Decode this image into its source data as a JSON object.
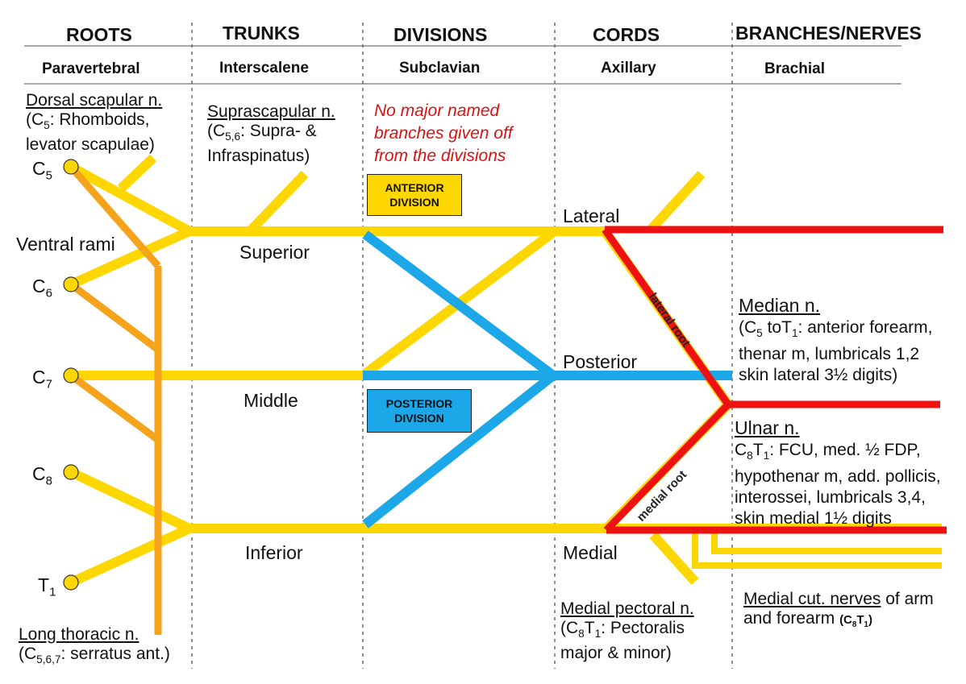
{
  "columns": [
    {
      "title": "ROOTS",
      "region": "Paravertebral"
    },
    {
      "title": "TRUNKS",
      "region": "Interscalene"
    },
    {
      "title": "DIVISIONS",
      "region": "Subclavian"
    },
    {
      "title": "CORDS",
      "region": "Axillary"
    },
    {
      "title": "BRANCHES/NERVES",
      "region": "Brachial"
    }
  ],
  "roots": {
    "c5": "C",
    "c5_sub": "5",
    "c6": "C",
    "c6_sub": "6",
    "c7": "C",
    "c7_sub": "7",
    "c8": "C",
    "c8_sub": "8",
    "t1": "T",
    "t1_sub": "1",
    "ventral_rami": "Ventral rami"
  },
  "trunks": {
    "superior": "Superior",
    "middle": "Middle",
    "inferior": "Inferior"
  },
  "cords": {
    "lateral": "Lateral",
    "posterior": "Posterior",
    "medial": "Medial"
  },
  "divisions": {
    "note": "No major named branches given off from the divisions",
    "anterior_line1": "ANTERIOR",
    "anterior_line2": "DIVISION",
    "posterior_line1": "POSTERIOR",
    "posterior_line2": "DIVISION"
  },
  "nerves": {
    "dorsal_scapular": {
      "name": "Dorsal scapular n.",
      "pre": "(C",
      "sub": "5",
      "post": ": Rhomboids, levator scapulae)"
    },
    "suprascapular": {
      "name": "Suprascapular n.",
      "pre": "(C",
      "sub": "5,6",
      "post": ": Supra- & Infraspinatus)"
    },
    "long_thoracic": {
      "name": "Long thoracic n.",
      "pre": "(C",
      "sub": "5,6,7",
      "post": ": serratus ant.)"
    },
    "median": {
      "name": "Median n.",
      "line1_pre": "(C",
      "line1_sub1": "5",
      "line1_mid": " toT",
      "line1_sub2": "1",
      "line1_post": ": anterior forearm,",
      "line2": "thenar m, lumbricals 1,2",
      "line3": "skin lateral 3½ digits)"
    },
    "ulnar": {
      "name": "Ulnar n.",
      "line1_pre": "C",
      "line1_sub1": "8",
      "line1_mid": "T",
      "line1_sub2": "1",
      "line1_post": ": FCU, med. ½ FDP,",
      "line2": "hypothenar m, add. pollicis,",
      "line3": "interossei, lumbricals 3,4,",
      "line4": "skin medial 1½ digits"
    },
    "medial_pectoral": {
      "name": "Medial pectoral n.",
      "pre": "(C",
      "sub1": "8",
      "mid": "T",
      "sub2": "1",
      "post": ": Pectoralis major & minor)"
    },
    "medial_cutaneous": {
      "name": "Medial cut. nerves",
      "rest": " of arm and forearm ",
      "code_pre": "(C",
      "code_sub1": "8",
      "code_mid": "T",
      "code_sub2": "1",
      "code_post": ")"
    },
    "lateral_root": "lateral root",
    "medial_root": "medial root"
  },
  "colors": {
    "yellow": "#ffd700",
    "orange": "#f5a31a",
    "blue": "#1ca7e8",
    "red": "#ee1111",
    "note_red": "#dd1111"
  }
}
